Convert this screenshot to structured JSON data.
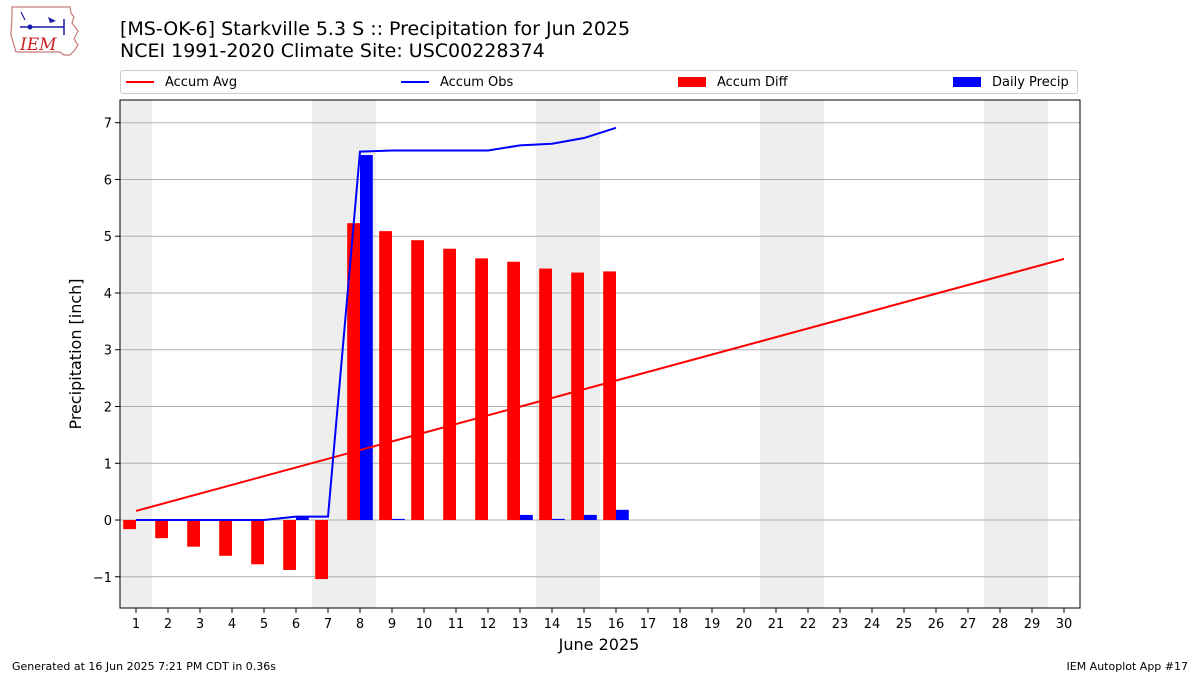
{
  "header": {
    "title_line1": "[MS-OK-6] Starkville 5.3 S :: Precipitation for Jun 2025",
    "title_line2": "NCEI 1991-2020 Climate Site: USC00228374",
    "logo_text": "IEM"
  },
  "legend": {
    "position": "top",
    "items": [
      {
        "label": "Accum Avg",
        "kind": "line",
        "color": "#ff0000"
      },
      {
        "label": "Accum Obs",
        "kind": "line",
        "color": "#0000ff"
      },
      {
        "label": "Accum Diff",
        "kind": "bar",
        "color": "#ff0000"
      },
      {
        "label": "Daily Precip",
        "kind": "bar",
        "color": "#0000ff"
      }
    ]
  },
  "chart_data": {
    "type": "bar",
    "xlabel": "June 2025",
    "ylabel": "Precipitation [inch]",
    "ylim": [
      -1.55,
      7.4
    ],
    "xlim": [
      0.5,
      30.5
    ],
    "x": [
      1,
      2,
      3,
      4,
      5,
      6,
      7,
      8,
      9,
      10,
      11,
      12,
      13,
      14,
      15,
      16,
      17,
      18,
      19,
      20,
      21,
      22,
      23,
      24,
      25,
      26,
      27,
      28,
      29,
      30
    ],
    "yticks": [
      -1,
      0,
      1,
      2,
      3,
      4,
      5,
      6,
      7
    ],
    "ytick_labels": [
      "−1",
      "0",
      "1",
      "2",
      "3",
      "4",
      "5",
      "6",
      "7"
    ],
    "grid": "horizontal",
    "weekend_shading": [
      [
        0.5,
        1.5
      ],
      [
        6.5,
        8.5
      ],
      [
        13.5,
        15.5
      ],
      [
        20.5,
        22.5
      ],
      [
        27.5,
        29.5
      ]
    ],
    "shading_color": "#eeeeee",
    "series": [
      {
        "name": "Accum Avg",
        "type": "line",
        "color": "#ff0000",
        "x": [
          1,
          30
        ],
        "values": [
          0.16,
          4.6
        ]
      },
      {
        "name": "Accum Obs",
        "type": "line",
        "color": "#0000ff",
        "x": [
          1,
          2,
          3,
          4,
          5,
          6,
          7,
          8,
          9,
          10,
          11,
          12,
          13,
          14,
          15,
          16
        ],
        "values": [
          0.0,
          0.0,
          0.0,
          0.0,
          0.0,
          0.06,
          0.06,
          6.49,
          6.51,
          6.51,
          6.51,
          6.51,
          6.6,
          6.63,
          6.73,
          6.91
        ]
      },
      {
        "name": "Accum Diff",
        "type": "bar",
        "color": "#ff0000",
        "x": [
          1,
          2,
          3,
          4,
          5,
          6,
          7,
          8,
          9,
          10,
          11,
          12,
          13,
          14,
          15,
          16
        ],
        "values": [
          -0.16,
          -0.32,
          -0.47,
          -0.63,
          -0.78,
          -0.88,
          -1.04,
          5.23,
          5.09,
          4.93,
          4.78,
          4.61,
          4.55,
          4.43,
          4.36,
          4.38
        ]
      },
      {
        "name": "Daily Precip",
        "type": "bar",
        "color": "#0000ff",
        "x": [
          1,
          2,
          3,
          4,
          5,
          6,
          7,
          8,
          9,
          10,
          11,
          12,
          13,
          14,
          15,
          16
        ],
        "values": [
          0,
          0,
          0,
          0,
          0,
          0.06,
          0,
          6.43,
          0.02,
          0,
          0,
          0,
          0.09,
          0.02,
          0.09,
          0.18
        ]
      }
    ]
  },
  "footer": {
    "left": "Generated at 16 Jun 2025 7:21 PM CDT in 0.36s",
    "right": "IEM Autoplot App #17"
  }
}
